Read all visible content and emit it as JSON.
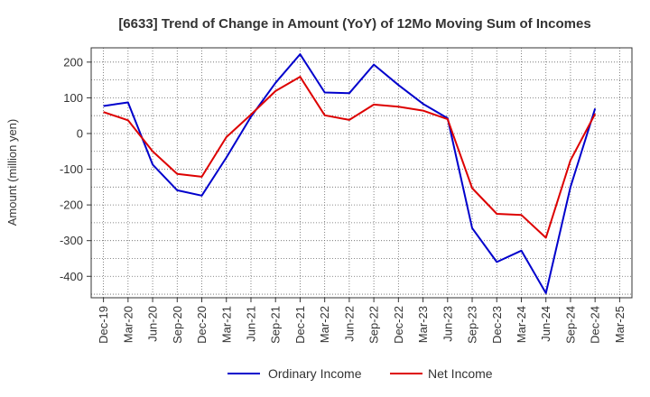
{
  "chart_data": {
    "type": "line",
    "title": "[6633]  Trend of Change in Amount (YoY) of 12Mo Moving Sum of Incomes",
    "xlabel": "",
    "ylabel": "Amount (million yen)",
    "categories": [
      "Dec-19",
      "Mar-20",
      "Jun-20",
      "Sep-20",
      "Dec-20",
      "Mar-21",
      "Jun-21",
      "Sep-21",
      "Dec-21",
      "Mar-22",
      "Jun-22",
      "Sep-22",
      "Dec-22",
      "Mar-23",
      "Jun-23",
      "Sep-23",
      "Dec-23",
      "Mar-24",
      "Jun-24",
      "Sep-24",
      "Dec-24",
      "Mar-25"
    ],
    "yticks": [
      -400,
      -300,
      -200,
      -100,
      0,
      100,
      200
    ],
    "ylim": [
      -460,
      240
    ],
    "grid": true,
    "legend_position": "bottom",
    "series": [
      {
        "name": "Ordinary Income",
        "color": "#0000cc",
        "values": [
          77,
          87,
          -87,
          -159,
          -174,
          -67,
          47,
          142,
          222,
          115,
          113,
          193,
          136,
          83,
          43,
          -265,
          -360,
          -328,
          -447,
          -150,
          70,
          null
        ]
      },
      {
        "name": "Net Income",
        "color": "#dd0000",
        "values": [
          60,
          37,
          -50,
          -113,
          -121,
          -10,
          53,
          119,
          159,
          51,
          38,
          81,
          75,
          64,
          40,
          -153,
          -225,
          -228,
          -292,
          -75,
          55,
          null
        ]
      }
    ]
  }
}
